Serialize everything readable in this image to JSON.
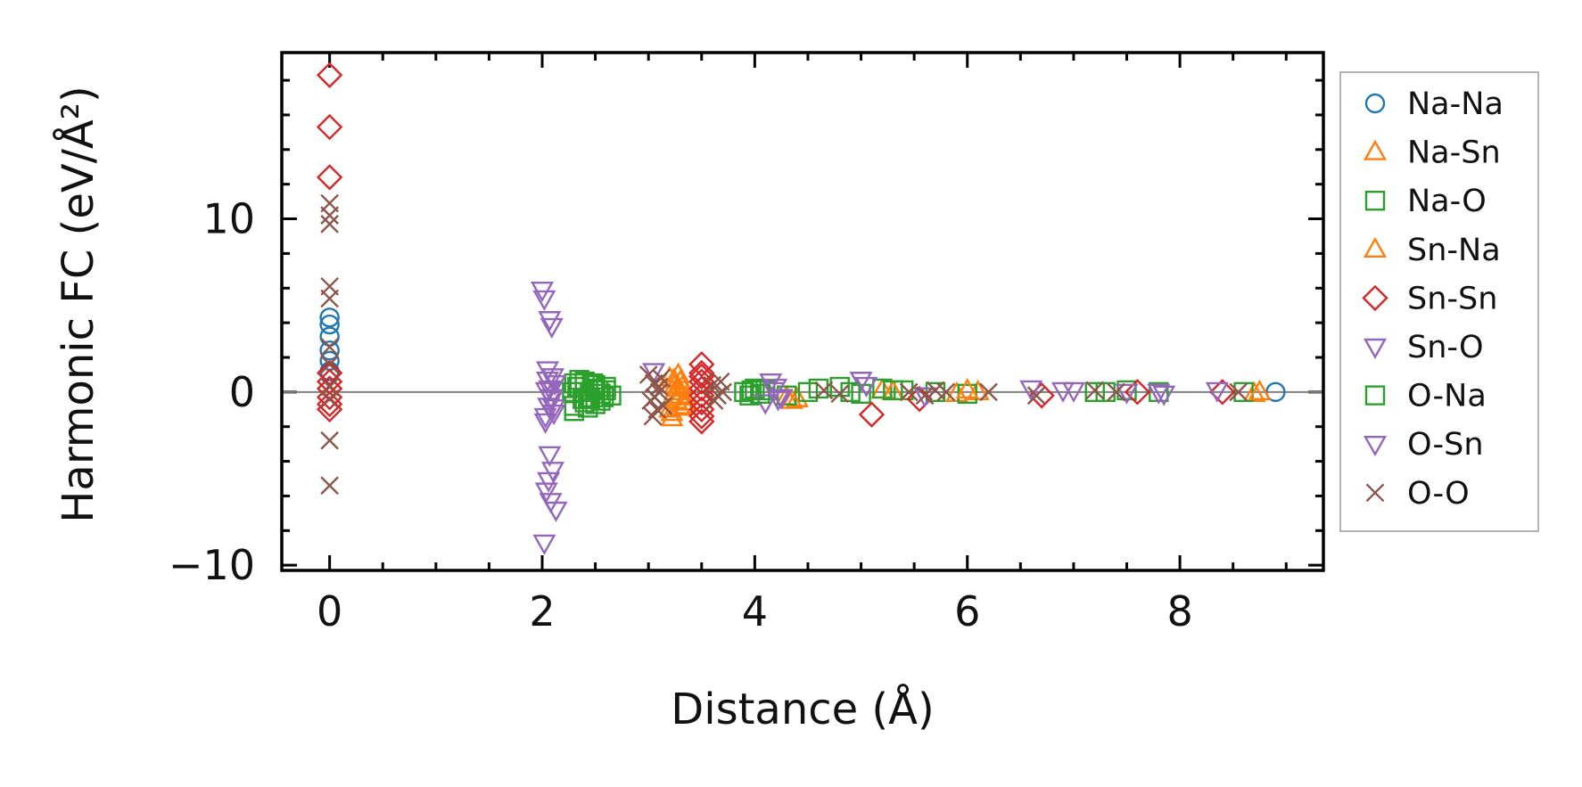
{
  "chart_data": {
    "type": "scatter",
    "title": "",
    "xlabel": "Distance (Å)",
    "ylabel": "Harmonic FC (eV/Å²)",
    "xlim": [
      -0.45,
      9.35
    ],
    "ylim": [
      -10.3,
      19.6
    ],
    "xticks": [
      0,
      2,
      4,
      6,
      8
    ],
    "xtick_labels": [
      "0",
      "2",
      "4",
      "6",
      "8"
    ],
    "yticks": [
      -10,
      0,
      10
    ],
    "ytick_labels": [
      "−10",
      "0",
      "10"
    ],
    "x_minor_step": 0.5,
    "y_minor_step": 2,
    "zero_line": true,
    "grid": false,
    "legend_position": "outside-right",
    "series": [
      {
        "name": "Na-Na",
        "marker": "circle",
        "color": "#1f77b4",
        "x": [
          0,
          0,
          0,
          0,
          0,
          0,
          8.9
        ],
        "y": [
          4.3,
          3.9,
          3.2,
          2.4,
          1.8,
          1.2,
          0.0
        ]
      },
      {
        "name": "Na-Sn",
        "marker": "triangle-up",
        "color": "#ff7f0e",
        "x": [
          3.2,
          3.25,
          3.3,
          3.35,
          3.2,
          3.25,
          3.3,
          3.35,
          3.22,
          3.28,
          3.34,
          4.3,
          4.4,
          5.2,
          5.9,
          6.1,
          8.7
        ],
        "y": [
          0.8,
          0.4,
          -0.2,
          -0.6,
          -1.0,
          0.0,
          0.6,
          -0.3,
          -1.5,
          0.2,
          -0.8,
          -0.3,
          -0.4,
          0.1,
          -0.1,
          0.0,
          -0.1
        ]
      },
      {
        "name": "Na-O",
        "marker": "square",
        "color": "#2ca02c",
        "x": [
          2.3,
          2.35,
          2.4,
          2.45,
          2.5,
          2.55,
          2.6,
          2.65,
          2.3,
          2.4,
          2.5,
          2.6,
          2.35,
          2.45,
          2.55,
          2.3,
          2.4,
          2.5,
          3.9,
          3.95,
          4.0,
          4.1,
          4.3,
          4.5,
          4.8,
          5.0,
          5.2,
          5.4,
          5.7,
          6.0,
          7.2,
          7.5,
          7.8,
          8.6
        ],
        "y": [
          0.5,
          0.3,
          0.0,
          -0.3,
          0.2,
          -0.5,
          0.1,
          -0.2,
          -0.8,
          -0.6,
          0.4,
          0.3,
          0.7,
          -0.4,
          -0.1,
          -1.1,
          0.6,
          -0.7,
          0.0,
          -0.2,
          0.2,
          0.1,
          -0.2,
          0.0,
          0.3,
          -0.1,
          0.2,
          0.1,
          0.0,
          -0.1,
          0.0,
          0.1,
          0.0,
          0.0
        ]
      },
      {
        "name": "Sn-Na",
        "marker": "triangle-up",
        "color": "#ff7f0e",
        "x": [
          3.22,
          3.28,
          3.32,
          3.26,
          3.24,
          3.3,
          4.35,
          5.3,
          6.0,
          8.75
        ],
        "y": [
          -1.2,
          1.0,
          0.3,
          -0.5,
          0.7,
          -0.9,
          -0.5,
          0.0,
          0.1,
          0.0
        ]
      },
      {
        "name": "Sn-Sn",
        "marker": "diamond",
        "color": "#d62728",
        "x": [
          0,
          0,
          0,
          0,
          0,
          0,
          0,
          0,
          0,
          3.5,
          3.5,
          3.5,
          3.5,
          3.5,
          3.5,
          3.5,
          3.5,
          3.5,
          3.5,
          5.1,
          5.55,
          7.6,
          8.4,
          6.7
        ],
        "y": [
          18.3,
          15.3,
          12.4,
          1.1,
          0.6,
          0.2,
          -0.3,
          -0.7,
          -1.0,
          1.6,
          1.1,
          0.6,
          0.2,
          -0.2,
          -0.6,
          -1.0,
          -1.4,
          -1.7,
          0.9,
          -1.3,
          -0.4,
          0.0,
          0.0,
          -0.2
        ]
      },
      {
        "name": "Sn-O",
        "marker": "triangle-down",
        "color": "#9467bd",
        "x": [
          2.0,
          2.02,
          2.07,
          2.09,
          2.05,
          2.1,
          2.12,
          2.04,
          2.08,
          2.06,
          2.11,
          2.03,
          2.07,
          2.1,
          2.06,
          2.04,
          2.08,
          2.13,
          2.02,
          3.05,
          4.15,
          4.2,
          4.25,
          4.1,
          5.0,
          5.6,
          6.6,
          7.0,
          7.5,
          7.85,
          8.35
        ],
        "y": [
          5.9,
          5.4,
          4.2,
          3.8,
          1.3,
          0.9,
          0.5,
          0.1,
          -0.3,
          -0.8,
          -1.2,
          -1.7,
          -3.6,
          -4.5,
          -5.1,
          -5.7,
          -6.3,
          -6.8,
          -8.7,
          1.2,
          0.6,
          0.3,
          -0.3,
          -0.6,
          0.7,
          -0.2,
          0.2,
          0.1,
          0.0,
          -0.1,
          0.1
        ]
      },
      {
        "name": "O-Na",
        "marker": "square",
        "color": "#2ca02c",
        "x": [
          2.28,
          2.38,
          2.48,
          2.58,
          2.33,
          2.43,
          2.53,
          3.97,
          4.05,
          4.6,
          4.9,
          5.3,
          7.3
        ],
        "y": [
          0.0,
          -0.4,
          0.5,
          -0.3,
          0.3,
          -0.9,
          0.1,
          0.1,
          -0.1,
          0.2,
          0.0,
          0.1,
          0.0
        ]
      },
      {
        "name": "O-Sn",
        "marker": "triangle-down",
        "color": "#9467bd",
        "x": [
          2.05,
          2.09,
          2.03,
          2.11,
          2.07,
          4.18,
          4.22,
          5.05,
          6.9,
          7.8
        ],
        "y": [
          0.7,
          -0.4,
          -1.4,
          -0.9,
          0.2,
          0.1,
          -0.4,
          0.4,
          0.1,
          0.0
        ]
      },
      {
        "name": "O-O",
        "marker": "x",
        "color": "#8c564b",
        "x": [
          0,
          0,
          0,
          0,
          0,
          0,
          0,
          0,
          0,
          0,
          0,
          3.0,
          3.05,
          3.1,
          3.02,
          3.08,
          3.12,
          3.06,
          3.04,
          3.1,
          3.14,
          3.6,
          3.65,
          3.7,
          3.62,
          3.68,
          4.65,
          4.8,
          5.45,
          5.6,
          5.7,
          5.8,
          6.2,
          6.65,
          7.2,
          7.4,
          8.55
        ],
        "y": [
          10.9,
          10.2,
          9.7,
          6.1,
          5.4,
          2.6,
          1.6,
          0.3,
          -0.4,
          -2.8,
          -5.4,
          1.0,
          0.5,
          0.0,
          -0.5,
          -1.0,
          0.8,
          -0.3,
          -1.4,
          0.3,
          -0.8,
          0.4,
          -0.2,
          0.0,
          -0.5,
          0.6,
          0.1,
          -0.1,
          0.0,
          -0.2,
          0.1,
          0.0,
          0.0,
          -0.2,
          0.1,
          0.0,
          0.0
        ]
      }
    ]
  }
}
